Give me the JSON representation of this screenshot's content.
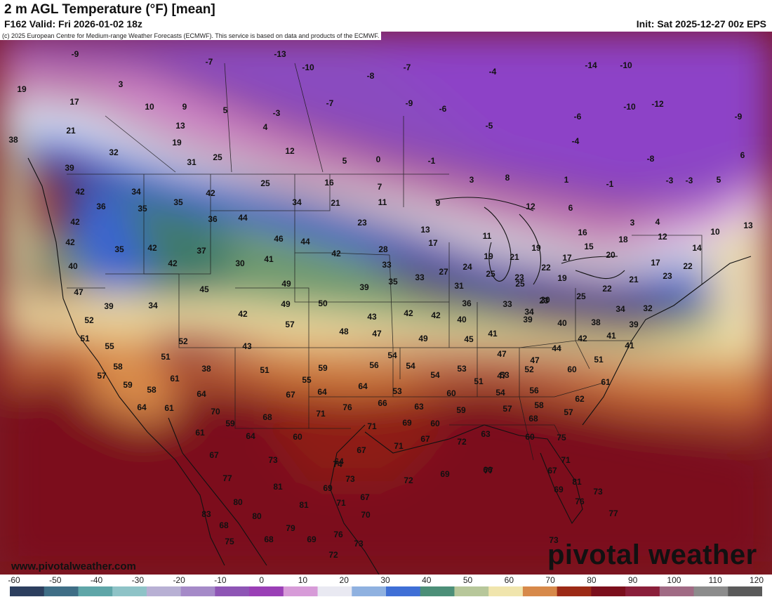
{
  "header": {
    "title": "2 m AGL Temperature (°F) [mean]",
    "valid": "F162 Valid: Fri 2026-01-02 18z",
    "init": "Init: Sat 2025-12-27 00z EPS"
  },
  "copyright": "(c) 2025 European Centre for Medium-range Weather Forecasts (ECMWF). This service is based on data and products of the ECMWF.",
  "website": "www.pivotalweather.com",
  "brand": "pivotal weather",
  "legend": {
    "ticks": [
      "-60",
      "-50",
      "-40",
      "-30",
      "-20",
      "-10",
      "0",
      "10",
      "20",
      "30",
      "40",
      "50",
      "60",
      "70",
      "80",
      "90",
      "100",
      "110",
      "120"
    ],
    "colors": [
      "#2c3e5e",
      "#3f6e86",
      "#5fa6a8",
      "#8ec3c7",
      "#b8b0d4",
      "#a58ac8",
      "#8e55b5",
      "#9a3fb6",
      "#d79bd8",
      "#e9e9f2",
      "#8fb1e0",
      "#3f6fd6",
      "#4c8f78",
      "#b7c79a",
      "#f0e5ad",
      "#d7894a",
      "#9c2a16",
      "#7b0f1c",
      "#8a1f3a",
      "#a06a84",
      "#8c8c8c",
      "#5a5a5a"
    ]
  },
  "temperatures": [
    {
      "v": "-9"
    },
    {
      "v": "-7"
    },
    {
      "v": "-13"
    },
    {
      "v": "-10"
    },
    {
      "v": "-8"
    },
    {
      "v": "-7"
    },
    {
      "v": "-4"
    },
    {
      "v": "-14"
    },
    {
      "v": "-10"
    },
    {
      "v": "19"
    },
    {
      "v": "3"
    },
    {
      "v": "17"
    },
    {
      "v": "10"
    },
    {
      "v": "9"
    },
    {
      "v": "5"
    },
    {
      "v": "-3"
    },
    {
      "v": "-7"
    },
    {
      "v": "-9"
    },
    {
      "v": "-6"
    },
    {
      "v": "-10"
    },
    {
      "v": "-12"
    },
    {
      "v": "-9"
    },
    {
      "v": "-6"
    },
    {
      "v": "21"
    },
    {
      "v": "13"
    },
    {
      "v": "4"
    },
    {
      "v": "-5"
    },
    {
      "v": "-4"
    },
    {
      "v": "38"
    },
    {
      "v": "19"
    },
    {
      "v": "12"
    },
    {
      "v": "-8"
    },
    {
      "v": "6"
    },
    {
      "v": "32"
    },
    {
      "v": "31"
    },
    {
      "v": "25"
    },
    {
      "v": "5"
    },
    {
      "v": "0"
    },
    {
      "v": "-1"
    },
    {
      "v": "-3"
    },
    {
      "v": "39"
    },
    {
      "v": "42"
    },
    {
      "v": "34"
    },
    {
      "v": "42"
    },
    {
      "v": "25"
    },
    {
      "v": "16"
    },
    {
      "v": "7"
    },
    {
      "v": "3"
    },
    {
      "v": "8"
    },
    {
      "v": "1"
    },
    {
      "v": "-1"
    },
    {
      "v": "-3"
    },
    {
      "v": "5"
    },
    {
      "v": "36"
    },
    {
      "v": "35"
    },
    {
      "v": "35"
    },
    {
      "v": "34"
    },
    {
      "v": "21"
    },
    {
      "v": "11"
    },
    {
      "v": "9"
    },
    {
      "v": "12"
    },
    {
      "v": "6"
    },
    {
      "v": "42"
    },
    {
      "v": "36"
    },
    {
      "v": "44"
    },
    {
      "v": "23"
    },
    {
      "v": "13"
    },
    {
      "v": "3"
    },
    {
      "v": "4"
    },
    {
      "v": "10"
    },
    {
      "v": "13"
    },
    {
      "v": "42"
    },
    {
      "v": "35"
    },
    {
      "v": "42"
    },
    {
      "v": "37"
    },
    {
      "v": "46"
    },
    {
      "v": "44"
    },
    {
      "v": "42"
    },
    {
      "v": "28"
    },
    {
      "v": "17"
    },
    {
      "v": "11"
    },
    {
      "v": "16"
    },
    {
      "v": "15"
    },
    {
      "v": "18"
    },
    {
      "v": "12"
    },
    {
      "v": "14"
    },
    {
      "v": "40"
    },
    {
      "v": "42"
    },
    {
      "v": "30"
    },
    {
      "v": "41"
    },
    {
      "v": "33"
    },
    {
      "v": "19"
    },
    {
      "v": "21"
    },
    {
      "v": "19"
    },
    {
      "v": "17"
    },
    {
      "v": "22"
    },
    {
      "v": "20"
    },
    {
      "v": "17"
    },
    {
      "v": "22"
    },
    {
      "v": "47"
    },
    {
      "v": "45"
    },
    {
      "v": "49"
    },
    {
      "v": "35"
    },
    {
      "v": "33"
    },
    {
      "v": "27"
    },
    {
      "v": "24"
    },
    {
      "v": "25"
    },
    {
      "v": "23"
    },
    {
      "v": "19"
    },
    {
      "v": "21"
    },
    {
      "v": "23"
    },
    {
      "v": "39"
    },
    {
      "v": "34"
    },
    {
      "v": "49"
    },
    {
      "v": "50"
    },
    {
      "v": "39"
    },
    {
      "v": "31"
    },
    {
      "v": "25"
    },
    {
      "v": "23"
    },
    {
      "v": "22"
    },
    {
      "v": "52"
    },
    {
      "v": "42"
    },
    {
      "v": "57"
    },
    {
      "v": "43"
    },
    {
      "v": "42"
    },
    {
      "v": "42"
    },
    {
      "v": "36"
    },
    {
      "v": "33"
    },
    {
      "v": "30"
    },
    {
      "v": "25"
    },
    {
      "v": "34"
    },
    {
      "v": "32"
    },
    {
      "v": "51"
    },
    {
      "v": "48"
    },
    {
      "v": "47"
    },
    {
      "v": "40"
    },
    {
      "v": "34"
    },
    {
      "v": "40"
    },
    {
      "v": "38"
    },
    {
      "v": "39"
    },
    {
      "v": "55"
    },
    {
      "v": "52"
    },
    {
      "v": "43"
    },
    {
      "v": "49"
    },
    {
      "v": "45"
    },
    {
      "v": "41"
    },
    {
      "v": "39"
    },
    {
      "v": "42"
    },
    {
      "v": "41"
    },
    {
      "v": "58"
    },
    {
      "v": "51"
    },
    {
      "v": "54"
    },
    {
      "v": "47"
    },
    {
      "v": "44"
    },
    {
      "v": "41"
    },
    {
      "v": "57"
    },
    {
      "v": "38"
    },
    {
      "v": "51"
    },
    {
      "v": "59"
    },
    {
      "v": "56"
    },
    {
      "v": "54"
    },
    {
      "v": "53"
    },
    {
      "v": "47"
    },
    {
      "v": "47"
    },
    {
      "v": "51"
    },
    {
      "v": "60"
    },
    {
      "v": "59"
    },
    {
      "v": "58"
    },
    {
      "v": "61"
    },
    {
      "v": "55"
    },
    {
      "v": "54"
    },
    {
      "v": "51"
    },
    {
      "v": "53"
    },
    {
      "v": "52"
    },
    {
      "v": "61"
    },
    {
      "v": "64"
    },
    {
      "v": "67"
    },
    {
      "v": "64"
    },
    {
      "v": "64"
    },
    {
      "v": "53"
    },
    {
      "v": "60"
    },
    {
      "v": "54"
    },
    {
      "v": "56"
    },
    {
      "v": "62"
    },
    {
      "v": "64"
    },
    {
      "v": "61"
    },
    {
      "v": "70"
    },
    {
      "v": "66"
    },
    {
      "v": "63"
    },
    {
      "v": "59"
    },
    {
      "v": "57"
    },
    {
      "v": "58"
    },
    {
      "v": "57"
    },
    {
      "v": "59"
    },
    {
      "v": "68"
    },
    {
      "v": "71"
    },
    {
      "v": "76"
    },
    {
      "v": "71"
    },
    {
      "v": "69"
    },
    {
      "v": "60"
    },
    {
      "v": "68"
    },
    {
      "v": "61"
    },
    {
      "v": "64"
    },
    {
      "v": "60"
    },
    {
      "v": "63"
    },
    {
      "v": "60"
    },
    {
      "v": "75"
    },
    {
      "v": "71"
    },
    {
      "v": "67"
    },
    {
      "v": "72"
    },
    {
      "v": "67"
    },
    {
      "v": "71"
    },
    {
      "v": "67"
    },
    {
      "v": "73"
    },
    {
      "v": "64"
    },
    {
      "v": "77"
    },
    {
      "v": "77"
    },
    {
      "v": "73"
    },
    {
      "v": "74"
    },
    {
      "v": "72"
    },
    {
      "v": "69"
    },
    {
      "v": "66"
    },
    {
      "v": "67"
    },
    {
      "v": "81"
    },
    {
      "v": "69"
    },
    {
      "v": "81"
    },
    {
      "v": "80"
    },
    {
      "v": "67"
    },
    {
      "v": "69"
    },
    {
      "v": "73"
    },
    {
      "v": "81"
    },
    {
      "v": "71"
    },
    {
      "v": "76"
    },
    {
      "v": "83"
    },
    {
      "v": "80"
    },
    {
      "v": "70"
    },
    {
      "v": "77"
    },
    {
      "v": "68"
    },
    {
      "v": "79"
    },
    {
      "v": "75"
    },
    {
      "v": "68"
    },
    {
      "v": "69"
    },
    {
      "v": "76"
    },
    {
      "v": "73"
    },
    {
      "v": "72"
    },
    {
      "v": "73"
    }
  ]
}
